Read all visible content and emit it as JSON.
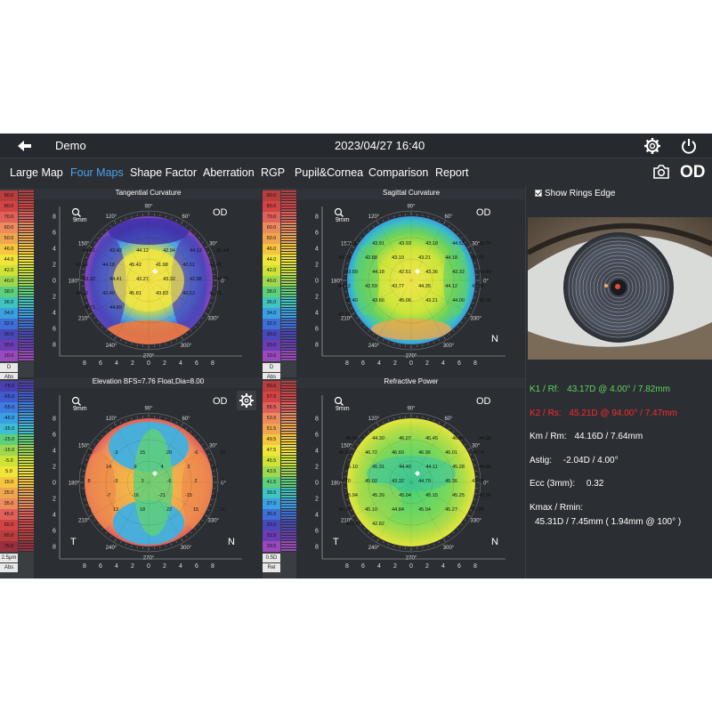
{
  "header": {
    "patient": "Demo",
    "datetime": "2023/04/27 16:40"
  },
  "nav": {
    "tabs": [
      {
        "label": "Large Map",
        "active": false
      },
      {
        "label": "Four Maps",
        "active": true
      },
      {
        "label": "Shape Factor",
        "active": false
      },
      {
        "label": "Aberration",
        "active": false
      },
      {
        "label": "RGP",
        "active": false
      },
      {
        "label": "Pupil&Cornea",
        "active": false
      },
      {
        "label": "Comparison",
        "active": false
      },
      {
        "label": "Report",
        "active": false
      }
    ],
    "eye": "OD"
  },
  "colors": {
    "accent": "#4da3e8",
    "k1": "#5fd35f",
    "k2": "#ff2a2a"
  },
  "scales": {
    "curvature": {
      "values": [
        "90.0",
        "80.0",
        "70.0",
        "60.0",
        "50.0",
        "46.0",
        "44.0",
        "42.0",
        "40.0",
        "38.0",
        "36.0",
        "34.0",
        "32.0",
        "30.0",
        "20.0",
        "10.0"
      ],
      "unit": "D",
      "mode": "Abs"
    },
    "elevation": {
      "values": [
        "-75.0",
        "-65.0",
        "-55.0",
        "-45.0",
        "-35.0",
        "-25.0",
        "-15.0",
        "-5.0",
        "5.0",
        "15.0",
        "25.0",
        "35.0",
        "45.0",
        "55.0",
        "65.0",
        "75.0"
      ],
      "unit": "2.5μm",
      "mode": "Abs"
    },
    "refractive": {
      "values": [
        "59.5",
        "57.5",
        "55.5",
        "53.5",
        "51.5",
        "49.5",
        "47.5",
        "45.5",
        "43.5",
        "41.5",
        "39.5",
        "37.5",
        "35.5",
        "33.5",
        "31.5",
        "29.5"
      ],
      "unit": "0.5D",
      "mode": "Rel"
    }
  },
  "maps": {
    "tangential": {
      "title": "Tangential Curvature",
      "zoom": "9mm",
      "eye": "OD",
      "nasal": ""
    },
    "sagittal": {
      "title": "Sagittal Curvature",
      "zoom": "9mm",
      "eye": "OD",
      "nasal": "N"
    },
    "elevation": {
      "title": "Elevation BFS=7.76 Float,Dia=8.00",
      "zoom": "9mm",
      "eye": "OD",
      "temporal": "T",
      "nasal": "N"
    },
    "refractive": {
      "title": "Refractive Power",
      "zoom": "9mm",
      "eye": "OD",
      "temporal": "T",
      "nasal": "N"
    },
    "angle_labels": [
      "90°",
      "60°",
      "30°",
      "0°",
      "330°",
      "300°",
      "270°",
      "240°",
      "210°",
      "180°",
      "150°",
      "120°"
    ],
    "axis_labels": [
      "8",
      "6",
      "4",
      "2",
      "0",
      "2",
      "4",
      "6",
      "8"
    ],
    "tang_values": [
      "44.41",
      "43.42",
      "44.12",
      "42.94",
      "44.12",
      "41.64",
      "43.36",
      "44.18",
      "45.42",
      "41.98",
      "42.51",
      "43.05",
      "43.32",
      "44.41",
      "43.27",
      "43.32",
      "42.88",
      "44.41",
      "44.12",
      "42.40",
      "45.81",
      "43.83",
      "43.63",
      "42.55",
      "43.71",
      "44.89"
    ],
    "sag_values": [
      "44.06",
      "43.91",
      "43.93",
      "43.18",
      "44.53",
      "43.75",
      "45.24",
      "42.88",
      "43.10",
      "43.21",
      "44.18",
      "43.72",
      "43.89",
      "44.18",
      "42.51",
      "43.36",
      "43.32",
      "43.44",
      "44.12",
      "42.59",
      "43.77",
      "44.35",
      "44.12",
      "43.36",
      "42.40",
      "43.66",
      "45.06",
      "43.21",
      "44.00",
      "43.95",
      "42.24"
    ],
    "elev_values": [
      "-18",
      "-3",
      "15",
      "20",
      "-6",
      "22",
      "26",
      "14",
      "9",
      "4",
      "2",
      "33",
      "8",
      "-3",
      "3",
      "-6",
      "2",
      "-7",
      "-11",
      "-7",
      "-16",
      "-21",
      "-15",
      "-12",
      "-6",
      "13",
      "18",
      "22",
      "15",
      "21"
    ],
    "ref_values": [
      "45.46",
      "44.30",
      "46.07",
      "45.45",
      "46.40",
      "44.98",
      "45.06",
      "46.72",
      "46.60",
      "46.96",
      "46.01",
      "46.74",
      "45.10",
      "45.31",
      "44.40",
      "44.11",
      "45.28",
      "44.86",
      "44.70",
      "45.02",
      "43.32",
      "44.79",
      "45.36",
      "43.95",
      "45.94",
      "45.39",
      "45.04",
      "45.15",
      "45.25",
      "45.96",
      "45.39",
      "45.10",
      "44.84",
      "45.04",
      "45.27",
      "42.95",
      "45.53",
      "42.82"
    ]
  },
  "side": {
    "show_rings_edge": "Show Rings Edge",
    "k1_label": "K1 / Rf:",
    "k1_value": "43.17D @ 4.00° / 7.82mm",
    "k2_label": "K2 / Rs:",
    "k2_value": "45.21D @ 94.00° / 7.47mm",
    "km_label": "Km / Rm:",
    "km_value": "44.16D / 7.64mm",
    "astig_label": "Astig:",
    "astig_value": "-2.04D / 4.00°",
    "ecc_label": "Ecc (3mm):",
    "ecc_value": "0.32",
    "kmax_label": "Kmax / Rmin:",
    "kmax_value": "45.31D / 7.45mm ( 1.94mm @ 100° )"
  }
}
